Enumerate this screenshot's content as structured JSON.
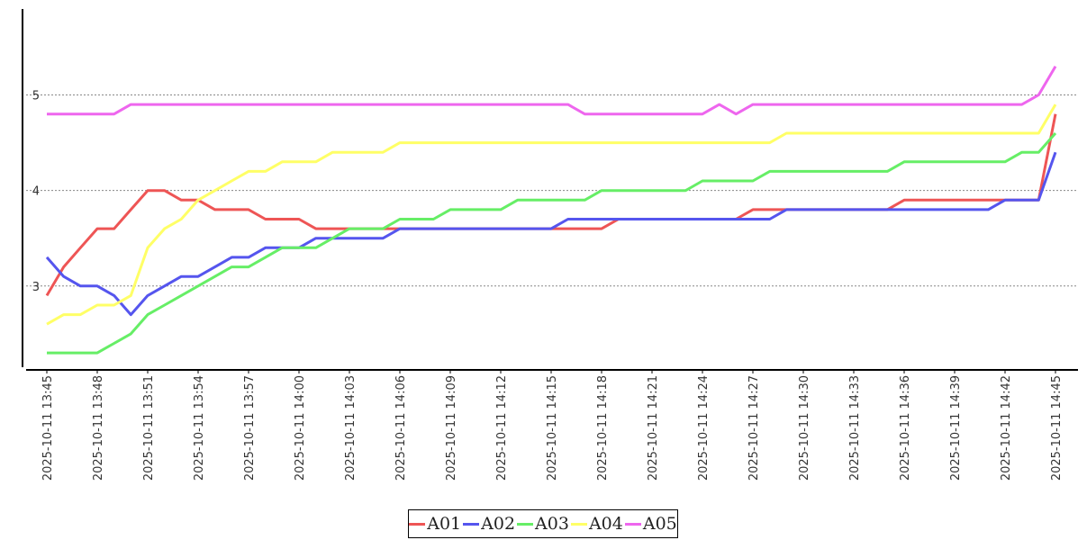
{
  "chart_data": {
    "type": "line",
    "title": "",
    "xlabel": "",
    "ylabel": "",
    "ylim": [
      2.15,
      5.9
    ],
    "yticks": [
      3,
      4,
      5
    ],
    "ytick_labels": [
      "3",
      "4",
      "5"
    ],
    "grid": "horizontal dotted",
    "legend": "bottom-center",
    "x_start": "2025-10-11 13:45",
    "x_step_minutes": 1,
    "xtick_labels": [
      "2025-10-11 13:45",
      "2025-10-11 13:48",
      "2025-10-11 13:51",
      "2025-10-11 13:54",
      "2025-10-11 13:57",
      "2025-10-11 14:00",
      "2025-10-11 14:03",
      "2025-10-11 14:06",
      "2025-10-11 14:09",
      "2025-10-11 14:12",
      "2025-10-11 14:15",
      "2025-10-11 14:18",
      "2025-10-11 14:21",
      "2025-10-11 14:24",
      "2025-10-11 14:27",
      "2025-10-11 14:30",
      "2025-10-11 14:33",
      "2025-10-11 14:36",
      "2025-10-11 14:39",
      "2025-10-11 14:42",
      "2025-10-11 14:45"
    ],
    "series": [
      {
        "name": "A01",
        "color": "#ee5555",
        "values": [
          2.9,
          3.2,
          3.4,
          3.6,
          3.6,
          3.8,
          4.0,
          4.0,
          3.9,
          3.9,
          3.8,
          3.8,
          3.8,
          3.7,
          3.7,
          3.7,
          3.6,
          3.6,
          3.6,
          3.6,
          3.6,
          3.6,
          3.6,
          3.6,
          3.6,
          3.6,
          3.6,
          3.6,
          3.6,
          3.6,
          3.6,
          3.6,
          3.6,
          3.6,
          3.7,
          3.7,
          3.7,
          3.7,
          3.7,
          3.7,
          3.7,
          3.7,
          3.8,
          3.8,
          3.8,
          3.8,
          3.8,
          3.8,
          3.8,
          3.8,
          3.8,
          3.9,
          3.9,
          3.9,
          3.9,
          3.9,
          3.9,
          3.9,
          3.9,
          3.9,
          4.8
        ]
      },
      {
        "name": "A02",
        "color": "#5555ee",
        "values": [
          3.3,
          3.1,
          3.0,
          3.0,
          2.9,
          2.7,
          2.9,
          3.0,
          3.1,
          3.1,
          3.2,
          3.3,
          3.3,
          3.4,
          3.4,
          3.4,
          3.5,
          3.5,
          3.5,
          3.5,
          3.5,
          3.6,
          3.6,
          3.6,
          3.6,
          3.6,
          3.6,
          3.6,
          3.6,
          3.6,
          3.6,
          3.7,
          3.7,
          3.7,
          3.7,
          3.7,
          3.7,
          3.7,
          3.7,
          3.7,
          3.7,
          3.7,
          3.7,
          3.7,
          3.8,
          3.8,
          3.8,
          3.8,
          3.8,
          3.8,
          3.8,
          3.8,
          3.8,
          3.8,
          3.8,
          3.8,
          3.8,
          3.9,
          3.9,
          3.9,
          4.4
        ]
      },
      {
        "name": "A03",
        "color": "#66ee66",
        "values": [
          2.3,
          2.3,
          2.3,
          2.3,
          2.4,
          2.5,
          2.7,
          2.8,
          2.9,
          3.0,
          3.1,
          3.2,
          3.2,
          3.3,
          3.4,
          3.4,
          3.4,
          3.5,
          3.6,
          3.6,
          3.6,
          3.7,
          3.7,
          3.7,
          3.8,
          3.8,
          3.8,
          3.8,
          3.9,
          3.9,
          3.9,
          3.9,
          3.9,
          4.0,
          4.0,
          4.0,
          4.0,
          4.0,
          4.0,
          4.1,
          4.1,
          4.1,
          4.1,
          4.2,
          4.2,
          4.2,
          4.2,
          4.2,
          4.2,
          4.2,
          4.2,
          4.3,
          4.3,
          4.3,
          4.3,
          4.3,
          4.3,
          4.3,
          4.4,
          4.4,
          4.6
        ]
      },
      {
        "name": "A04",
        "color": "#ffff66",
        "values": [
          2.6,
          2.7,
          2.7,
          2.8,
          2.8,
          2.9,
          3.4,
          3.6,
          3.7,
          3.9,
          4.0,
          4.1,
          4.2,
          4.2,
          4.3,
          4.3,
          4.3,
          4.4,
          4.4,
          4.4,
          4.4,
          4.5,
          4.5,
          4.5,
          4.5,
          4.5,
          4.5,
          4.5,
          4.5,
          4.5,
          4.5,
          4.5,
          4.5,
          4.5,
          4.5,
          4.5,
          4.5,
          4.5,
          4.5,
          4.5,
          4.5,
          4.5,
          4.5,
          4.5,
          4.6,
          4.6,
          4.6,
          4.6,
          4.6,
          4.6,
          4.6,
          4.6,
          4.6,
          4.6,
          4.6,
          4.6,
          4.6,
          4.6,
          4.6,
          4.6,
          4.9
        ]
      },
      {
        "name": "A05",
        "color": "#ee66ee",
        "values": [
          4.8,
          4.8,
          4.8,
          4.8,
          4.8,
          4.9,
          4.9,
          4.9,
          4.9,
          4.9,
          4.9,
          4.9,
          4.9,
          4.9,
          4.9,
          4.9,
          4.9,
          4.9,
          4.9,
          4.9,
          4.9,
          4.9,
          4.9,
          4.9,
          4.9,
          4.9,
          4.9,
          4.9,
          4.9,
          4.9,
          4.9,
          4.9,
          4.8,
          4.8,
          4.8,
          4.8,
          4.8,
          4.8,
          4.8,
          4.8,
          4.9,
          4.8,
          4.9,
          4.9,
          4.9,
          4.9,
          4.9,
          4.9,
          4.9,
          4.9,
          4.9,
          4.9,
          4.9,
          4.9,
          4.9,
          4.9,
          4.9,
          4.9,
          4.9,
          5.0,
          5.3
        ]
      }
    ]
  }
}
